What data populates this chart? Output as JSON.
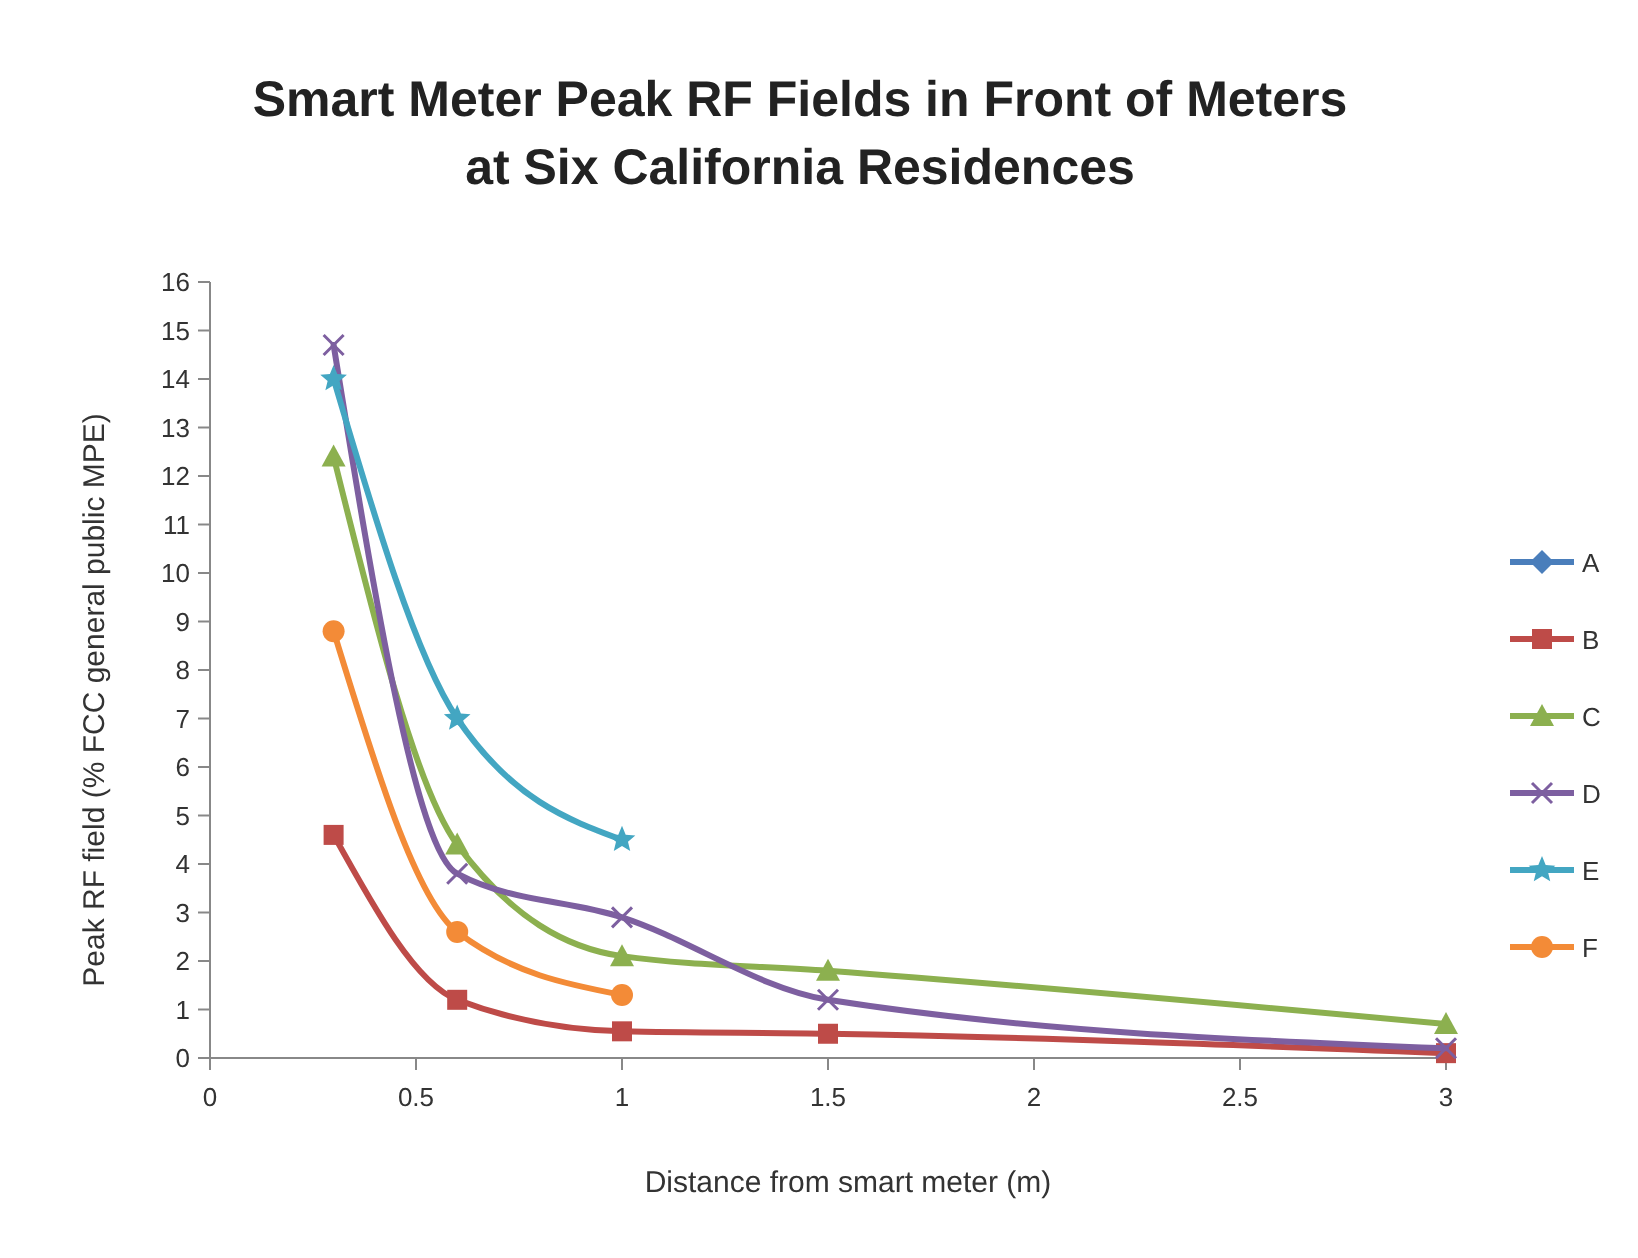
{
  "chart_data": {
    "type": "line",
    "title": "Smart Meter Peak RF Fields in Front of Meters\nat Six California Residences",
    "xlabel": "Distance from smart meter (m)",
    "ylabel": "Peak RF field (% FCC general public MPE)",
    "x": [
      0.3,
      0.6,
      1,
      1.5,
      3
    ],
    "series": [
      {
        "name": "A",
        "color": "#4a7ebb",
        "marker": "diamond",
        "values": [
          null,
          null,
          null,
          null,
          null
        ]
      },
      {
        "name": "B",
        "color": "#be4b48",
        "marker": "square",
        "values": [
          4.6,
          1.2,
          0.55,
          0.5,
          0.1
        ]
      },
      {
        "name": "C",
        "color": "#8cb04f",
        "marker": "triangle",
        "values": [
          12.4,
          4.4,
          2.1,
          1.8,
          0.7
        ]
      },
      {
        "name": "D",
        "color": "#7d5fa0",
        "marker": "cross",
        "values": [
          14.7,
          3.8,
          2.9,
          1.2,
          0.2
        ]
      },
      {
        "name": "E",
        "color": "#43a6c2",
        "marker": "star",
        "x": [
          0.3,
          0.6,
          1
        ],
        "values": [
          14.0,
          7.0,
          4.5
        ]
      },
      {
        "name": "F",
        "color": "#f38b37",
        "marker": "circle",
        "x": [
          0.3,
          0.6,
          1
        ],
        "values": [
          8.8,
          2.6,
          1.3
        ]
      }
    ],
    "xlim": [
      0,
      3
    ],
    "xticks": [
      0,
      0.5,
      1,
      1.5,
      2,
      2.5,
      3
    ],
    "ylim": [
      0,
      16
    ],
    "yticks": [
      0,
      1,
      2,
      3,
      4,
      5,
      6,
      7,
      8,
      9,
      10,
      11,
      12,
      13,
      14,
      15,
      16
    ],
    "grid": false,
    "legend": "right"
  }
}
